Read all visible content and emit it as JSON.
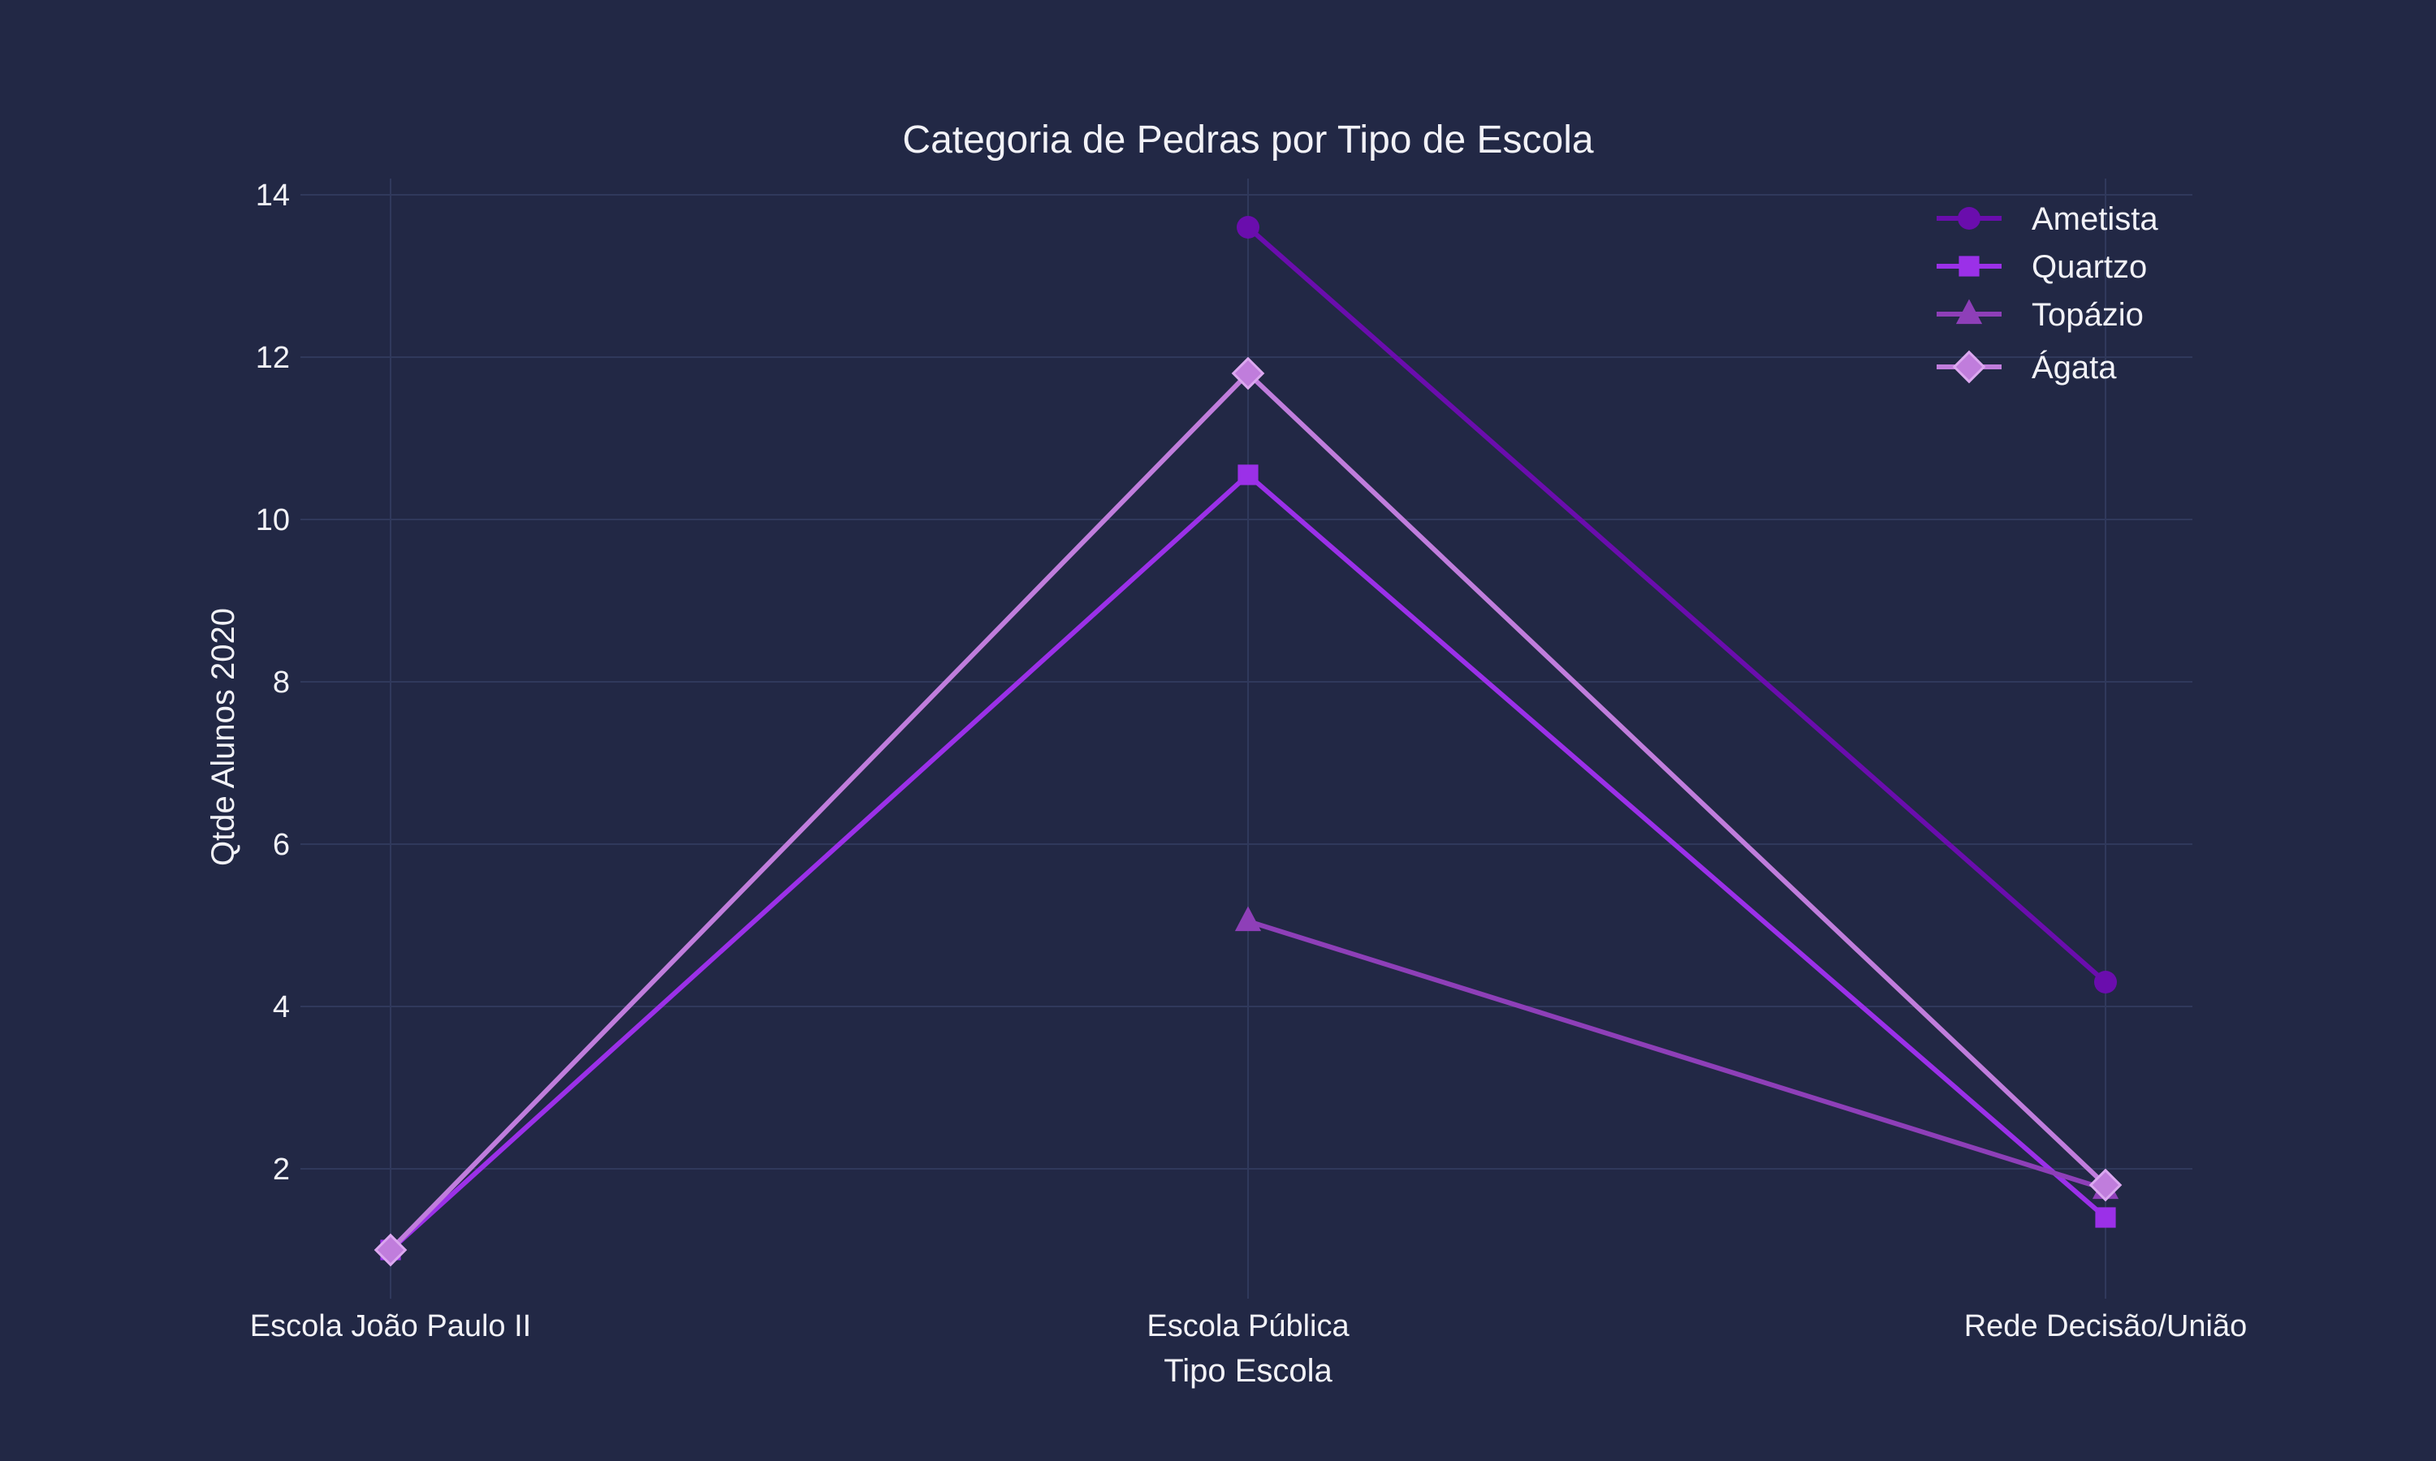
{
  "chart_data": {
    "type": "line",
    "title": "Categoria de Pedras por Tipo de Escola",
    "xlabel": "Tipo Escola",
    "ylabel": "Qtde Alunos 2020",
    "categories": [
      "Escola João Paulo II",
      "Escola Pública",
      "Rede Decisão/União"
    ],
    "ylim": [
      0.4,
      14.2
    ],
    "yticks": [
      2,
      4,
      6,
      8,
      10,
      12,
      14
    ],
    "grid": true,
    "legend_position": "top-right",
    "background": "#222845",
    "series": [
      {
        "name": "Ametista",
        "color": "#6a0dad",
        "marker": "circle",
        "values": [
          null,
          13.6,
          4.3
        ]
      },
      {
        "name": "Quartzo",
        "color": "#9b30e8",
        "marker": "square",
        "values": [
          1.0,
          10.55,
          1.4
        ]
      },
      {
        "name": "Topázio",
        "color": "#8e3fb8",
        "marker": "triangle",
        "values": [
          null,
          5.05,
          1.75
        ]
      },
      {
        "name": "Ágata",
        "color": "#c07ddc",
        "marker": "diamond",
        "values": [
          1.0,
          11.8,
          1.8
        ]
      }
    ]
  }
}
